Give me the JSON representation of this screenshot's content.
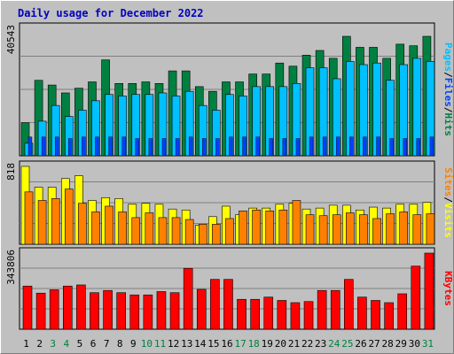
{
  "title": "Daily usage for December 2022",
  "colors": {
    "hits": "#008040",
    "files": "#00c0ff",
    "pages": "#0040ff",
    "visits": "#ffff00",
    "sites": "#ff8000",
    "kbytes": "#ff0000",
    "title": "#0000c0",
    "weekend_label": "#008040",
    "weekday_label": "#000000"
  },
  "chart_data": [
    {
      "type": "bar",
      "categories": [
        "1",
        "2",
        "3",
        "4",
        "5",
        "6",
        "7",
        "8",
        "9",
        "10",
        "11",
        "12",
        "13",
        "14",
        "15",
        "16",
        "17",
        "18",
        "19",
        "20",
        "21",
        "22",
        "23",
        "24",
        "25",
        "26",
        "27",
        "28",
        "29",
        "30",
        "31"
      ],
      "weekend_days": [
        3,
        4,
        10,
        11,
        17,
        18,
        24,
        25,
        31
      ],
      "ymax_label": "40543",
      "ylim": [
        0,
        40543
      ],
      "right_label_parts": [
        {
          "text": "Pages",
          "color": "#00c0ff"
        },
        {
          "text": "/",
          "color": "#000000"
        },
        {
          "text": "Files",
          "color": "#0040ff"
        },
        {
          "text": "/",
          "color": "#000000"
        },
        {
          "text": "Hits",
          "color": "#008040"
        }
      ],
      "series": [
        {
          "name": "Hits",
          "values": [
            10500,
            24000,
            22500,
            20000,
            21500,
            23500,
            30500,
            23000,
            23000,
            23500,
            23000,
            27000,
            27000,
            22000,
            20500,
            23500,
            23500,
            26000,
            26000,
            29500,
            28500,
            32000,
            33500,
            31000,
            38000,
            34500,
            34500,
            31000,
            35500,
            35000,
            38000
          ]
        },
        {
          "name": "Files",
          "values": [
            4000,
            11000,
            16000,
            12500,
            14500,
            17500,
            19500,
            19000,
            19500,
            19500,
            20000,
            19000,
            20500,
            16000,
            14500,
            19500,
            19000,
            22000,
            22000,
            22000,
            23000,
            28000,
            28000,
            24500,
            30000,
            29000,
            29500,
            24000,
            29000,
            31000,
            30000
          ]
        },
        {
          "name": "Pages",
          "values": [
            6000,
            6000,
            6000,
            5500,
            6000,
            6000,
            6000,
            6000,
            5500,
            5500,
            5500,
            5500,
            6000,
            5500,
            5500,
            6000,
            6000,
            6000,
            5500,
            5500,
            5500,
            6000,
            6000,
            6000,
            6000,
            6000,
            6000,
            5500,
            5500,
            5500,
            6000
          ]
        }
      ]
    },
    {
      "type": "bar",
      "categories": [
        "1",
        "2",
        "3",
        "4",
        "5",
        "6",
        "7",
        "8",
        "9",
        "10",
        "11",
        "12",
        "13",
        "14",
        "15",
        "16",
        "17",
        "18",
        "19",
        "20",
        "21",
        "22",
        "23",
        "24",
        "25",
        "26",
        "27",
        "28",
        "29",
        "30",
        "31"
      ],
      "ymax_label": "818",
      "ylim": [
        0,
        818
      ],
      "right_label_parts": [
        {
          "text": "Sites",
          "color": "#ff8000"
        },
        {
          "text": "/",
          "color": "#000000"
        },
        {
          "text": "Visits",
          "color": "#ffff00"
        }
      ],
      "series": [
        {
          "name": "Visits",
          "values": [
            818,
            600,
            600,
            690,
            720,
            460,
            490,
            480,
            420,
            430,
            420,
            370,
            360,
            200,
            290,
            400,
            310,
            380,
            380,
            420,
            430,
            370,
            380,
            410,
            410,
            360,
            390,
            380,
            420,
            420,
            440
          ]
        },
        {
          "name": "Sites",
          "values": [
            550,
            460,
            480,
            580,
            430,
            340,
            400,
            340,
            280,
            330,
            280,
            280,
            260,
            210,
            210,
            270,
            350,
            360,
            350,
            360,
            460,
            310,
            300,
            310,
            330,
            310,
            270,
            320,
            340,
            310,
            320
          ]
        }
      ]
    },
    {
      "type": "bar",
      "categories": [
        "1",
        "2",
        "3",
        "4",
        "5",
        "6",
        "7",
        "8",
        "9",
        "10",
        "11",
        "12",
        "13",
        "14",
        "15",
        "16",
        "17",
        "18",
        "19",
        "20",
        "21",
        "22",
        "23",
        "24",
        "25",
        "26",
        "27",
        "28",
        "29",
        "30",
        "31"
      ],
      "ymax_label": "343806",
      "ylim": [
        0,
        343806
      ],
      "right_label_parts": [
        {
          "text": "KBytes",
          "color": "#ff0000"
        }
      ],
      "series": [
        {
          "name": "KBytes",
          "values": [
            195000,
            163000,
            178000,
            195000,
            200000,
            165000,
            175000,
            165000,
            155000,
            155000,
            170000,
            165000,
            275000,
            180000,
            225000,
            225000,
            135000,
            135000,
            145000,
            130000,
            120000,
            125000,
            175000,
            175000,
            225000,
            145000,
            130000,
            120000,
            160000,
            285000,
            343806
          ]
        }
      ]
    }
  ]
}
